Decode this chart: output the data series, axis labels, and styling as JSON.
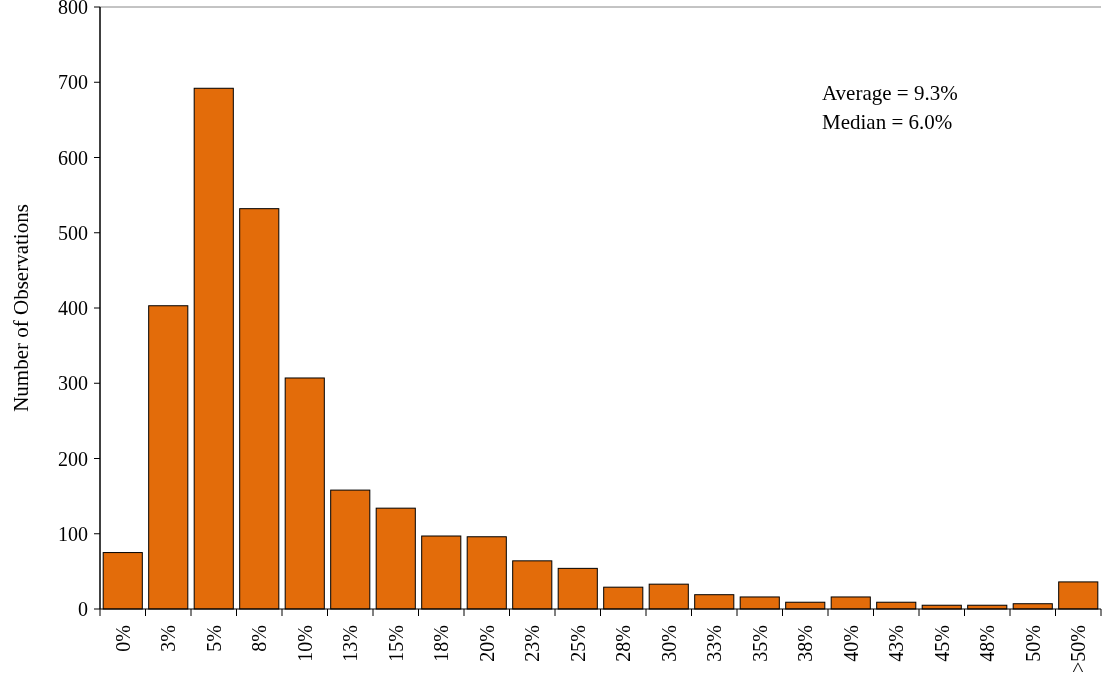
{
  "chart_data": {
    "type": "bar",
    "ylabel": "Number of Observations",
    "categories": [
      "0%",
      "3%",
      "5%",
      "8%",
      "10%",
      "13%",
      "15%",
      "18%",
      "20%",
      "23%",
      "25%",
      "28%",
      "30%",
      "33%",
      "35%",
      "38%",
      "40%",
      "43%",
      "45%",
      "48%",
      "50%",
      ">50%"
    ],
    "values": [
      75,
      403,
      692,
      532,
      307,
      158,
      134,
      97,
      96,
      64,
      54,
      29,
      33,
      19,
      16,
      9,
      16,
      9,
      5,
      5,
      7,
      36
    ],
    "color": "#e36c0a",
    "ylim": [
      0,
      800
    ],
    "yticks": [
      0,
      100,
      200,
      300,
      400,
      500,
      600,
      700,
      800
    ],
    "annotations": [
      "Average = 9.3%",
      "Median = 6.0%"
    ]
  }
}
